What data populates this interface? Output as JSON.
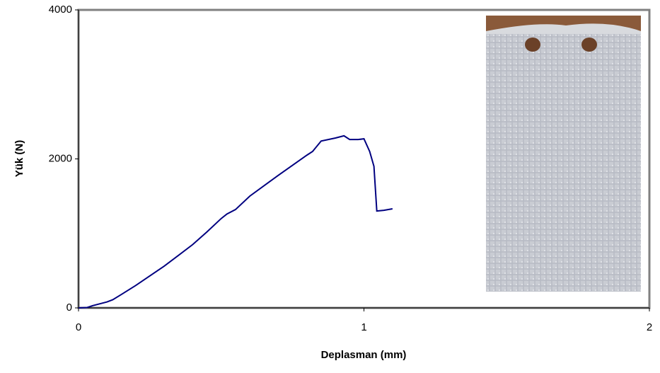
{
  "chart_data": {
    "type": "line",
    "x_label": "Deplasman (mm)",
    "y_label": "Yük (N)",
    "x": [
      0,
      0.03,
      0.05,
      0.1,
      0.12,
      0.15,
      0.2,
      0.3,
      0.4,
      0.45,
      0.5,
      0.52,
      0.55,
      0.6,
      0.7,
      0.8,
      0.82,
      0.85,
      0.9,
      0.93,
      0.95,
      0.98,
      1.0,
      1.02,
      1.035,
      1.045,
      1.07,
      1.1
    ],
    "series": [
      {
        "color": "#000080",
        "values": [
          0,
          5,
          30,
          80,
          110,
          180,
          300,
          560,
          850,
          1020,
          1200,
          1260,
          1320,
          1500,
          1780,
          2050,
          2100,
          2240,
          2280,
          2310,
          2260,
          2260,
          2270,
          2100,
          1900,
          1300,
          1310,
          1330
        ]
      }
    ],
    "xlim": [
      0,
      2
    ],
    "xticks": [
      0,
      1,
      2
    ],
    "ylim": [
      0,
      4000
    ],
    "yticks": [
      0,
      2000,
      4000
    ]
  }
}
